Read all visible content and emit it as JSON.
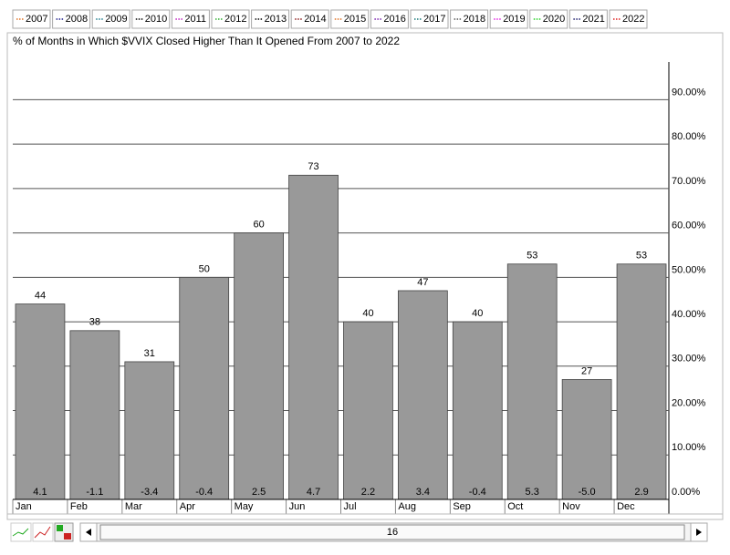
{
  "year_buttons": [
    {
      "name": "2007",
      "color": "#e07020"
    },
    {
      "name": "2008",
      "color": "#1a1a8c"
    },
    {
      "name": "2009",
      "color": "#1a7a8c"
    },
    {
      "name": "2010",
      "color": "#000000"
    },
    {
      "name": "2011",
      "color": "#c020c0"
    },
    {
      "name": "2012",
      "color": "#30b030"
    },
    {
      "name": "2013",
      "color": "#000000"
    },
    {
      "name": "2014",
      "color": "#8c1a1a"
    },
    {
      "name": "2015",
      "color": "#e07020"
    },
    {
      "name": "2016",
      "color": "#7a20b0"
    },
    {
      "name": "2017",
      "color": "#1a7a7a"
    },
    {
      "name": "2018",
      "color": "#555555"
    },
    {
      "name": "2019",
      "color": "#e020e0"
    },
    {
      "name": "2020",
      "color": "#20d020"
    },
    {
      "name": "2021",
      "color": "#1a1a6c"
    },
    {
      "name": "2022",
      "color": "#e02020"
    }
  ],
  "chart_data": {
    "type": "bar",
    "title": "% of Months in Which $VVIX Closed Higher Than It Opened From 2007 to 2022",
    "categories": [
      "Jan",
      "Feb",
      "Mar",
      "Apr",
      "May",
      "Jun",
      "Jul",
      "Aug",
      "Sep",
      "Oct",
      "Nov",
      "Dec"
    ],
    "values": [
      44,
      38,
      31,
      50,
      60,
      73,
      40,
      47,
      40,
      53,
      27,
      53
    ],
    "bottom_labels": [
      "4.1",
      "-1.1",
      "-3.4",
      "-0.4",
      "2.5",
      "4.7",
      "2.2",
      "3.4",
      "-0.4",
      "5.3",
      "-5.0",
      "2.9"
    ],
    "color": "#999999",
    "ylim": [
      0,
      98.5
    ],
    "yticks": [
      {
        "value": 0,
        "label": "0.00%"
      },
      {
        "value": 10,
        "label": "10.00%"
      },
      {
        "value": 20,
        "label": "20.00%"
      },
      {
        "value": 30,
        "label": "30.00%"
      },
      {
        "value": 40,
        "label": "40.00%"
      },
      {
        "value": 50,
        "label": "50.00%"
      },
      {
        "value": 60,
        "label": "60.00%"
      },
      {
        "value": 70,
        "label": "70.00%"
      },
      {
        "value": 80,
        "label": "80.00%"
      },
      {
        "value": 90,
        "label": "90.00%"
      }
    ],
    "grid": true
  },
  "scrollbar": {
    "value": 16
  }
}
